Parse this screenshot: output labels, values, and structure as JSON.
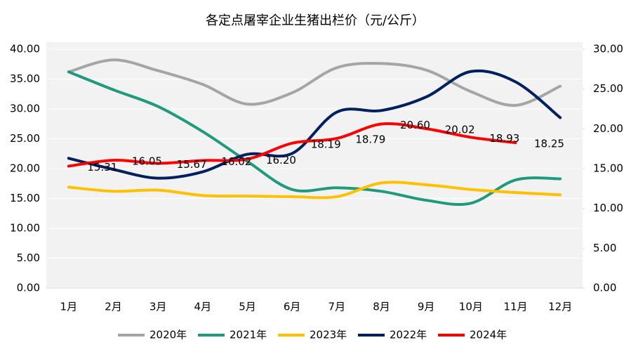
{
  "chart_data": {
    "type": "line",
    "title": "各定点屠宰企业生猪出栏价（元/公斤）",
    "categories": [
      "1月",
      "2月",
      "3月",
      "4月",
      "5月",
      "6月",
      "7月",
      "8月",
      "9月",
      "10月",
      "11月",
      "12月"
    ],
    "series": [
      {
        "name": "2020年",
        "color": "#a5a5a5",
        "values": [
          36.2,
          38.2,
          36.4,
          34.1,
          30.8,
          32.7,
          36.9,
          37.6,
          36.5,
          32.9,
          30.6,
          33.8
        ]
      },
      {
        "name": "2021年",
        "color": "#1f9a7c",
        "values": [
          36.2,
          33.2,
          30.4,
          26.2,
          21.2,
          16.5,
          16.8,
          16.2,
          14.7,
          14.2,
          18.1,
          18.3
        ]
      },
      {
        "name": "2023年",
        "color": "#ffc000",
        "values": [
          16.9,
          16.2,
          16.4,
          15.5,
          15.4,
          15.3,
          15.3,
          17.6,
          17.3,
          16.5,
          16.0,
          15.6
        ]
      },
      {
        "name": "2022年",
        "color": "#002060",
        "axis": "y2",
        "values": [
          16.3,
          14.9,
          13.8,
          14.6,
          16.8,
          16.9,
          22.1,
          22.3,
          24.0,
          27.2,
          25.9,
          21.4
        ]
      },
      {
        "name": "2024年",
        "color": "#ff0000",
        "axis": "y2",
        "values": [
          15.31,
          16.05,
          15.67,
          16.02,
          16.2,
          18.19,
          18.79,
          20.6,
          20.02,
          18.93,
          18.25,
          null
        ],
        "value_labels": [
          "15.31",
          "16.05",
          "15.67",
          "16.02",
          "16.20",
          "18.19",
          "18.79",
          "20.60",
          "20.02",
          "18.93",
          "18.25",
          null
        ]
      }
    ],
    "ylim": [
      0,
      40
    ],
    "yticks": [
      {
        "value": 0,
        "label": "0.00"
      },
      {
        "value": 5,
        "label": "5.00"
      },
      {
        "value": 10,
        "label": "10.00"
      },
      {
        "value": 15,
        "label": "15.00"
      },
      {
        "value": 20,
        "label": "20.00"
      },
      {
        "value": 25,
        "label": "25.00"
      },
      {
        "value": 30,
        "label": "30.00"
      },
      {
        "value": 35,
        "label": "35.00"
      },
      {
        "value": 40,
        "label": "40.00"
      }
    ],
    "y2lim": [
      0,
      30
    ],
    "y2ticks": [
      {
        "value": 0,
        "label": "0.00"
      },
      {
        "value": 5,
        "label": "5.00"
      },
      {
        "value": 10,
        "label": "10.00"
      },
      {
        "value": 15,
        "label": "15.00"
      },
      {
        "value": 20,
        "label": "20.00"
      },
      {
        "value": 25,
        "label": "25.00"
      },
      {
        "value": 30,
        "label": "30.00"
      }
    ],
    "grid": true,
    "legend": "bottom"
  }
}
